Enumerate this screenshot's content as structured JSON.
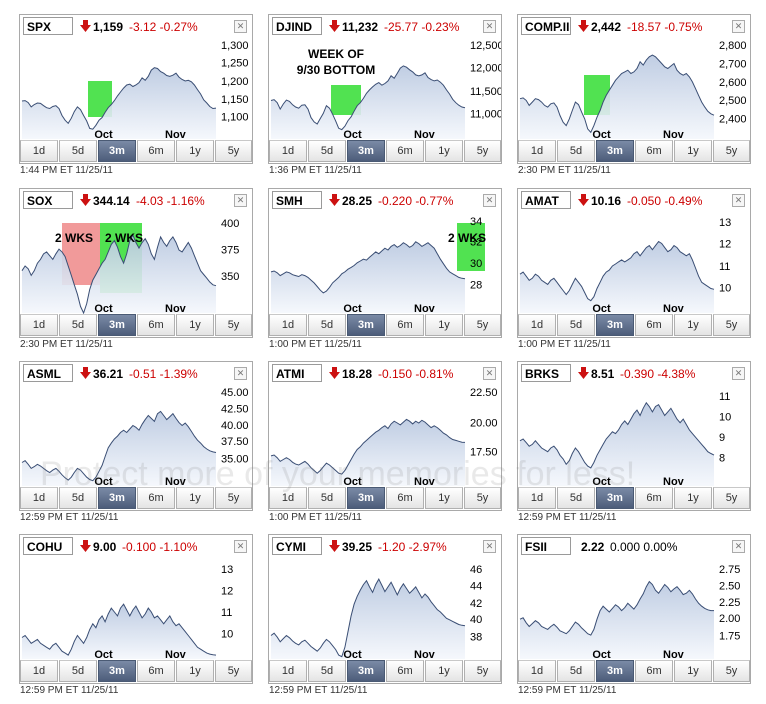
{
  "watermark": {
    "lines": [
      "Protect more of your memories for less!"
    ]
  },
  "tabs": [
    "1d",
    "5d",
    "3m",
    "6m",
    "1y",
    "5y"
  ],
  "panels": [
    {
      "symbol": "SPX",
      "price": "1,159",
      "change": "-3.12 -0.27%",
      "timestamp": "1:44 PM ET 11/25/11",
      "active_tab": "3m",
      "direction": "down",
      "ticks": [
        "1,300",
        "1,250",
        "1,200",
        "1,150",
        "1,100"
      ],
      "xlabels": [
        "Oct",
        "Nov"
      ],
      "annotations": [],
      "boxes": [
        {
          "color": "#33dd33"
        }
      ],
      "chart_data": {
        "type": "area",
        "y": [
          1177,
          1178,
          1173,
          1162,
          1168,
          1172,
          1171,
          1165,
          1160,
          1158,
          1163,
          1165,
          1158,
          1140,
          1128,
          1120,
          1133,
          1150,
          1162,
          1155,
          1140,
          1126,
          1107,
          1105,
          1115,
          1128,
          1135,
          1148,
          1160,
          1168,
          1178,
          1190,
          1200,
          1210,
          1218,
          1220,
          1214,
          1218,
          1224,
          1236,
          1230,
          1240,
          1256,
          1262,
          1260,
          1252,
          1248,
          1242,
          1240,
          1243,
          1248,
          1238,
          1232,
          1228,
          1230,
          1226,
          1218,
          1206,
          1195,
          1180,
          1172,
          1163,
          1158,
          1159
        ],
        "ylim": [
          1080,
          1320
        ]
      }
    },
    {
      "symbol": "DJIND",
      "price": "11,232",
      "change": "-25.77 -0.23%",
      "timestamp": "1:36 PM ET 11/25/11",
      "active_tab": "3m",
      "direction": "down",
      "ticks": [
        "12,500",
        "12,000",
        "11,500",
        "11,000"
      ],
      "xlabels": [
        "Oct",
        "Nov"
      ],
      "annotations": [
        "WEEK OF",
        "9/30 BOTTOM"
      ],
      "boxes": [
        {
          "color": "#33dd33"
        }
      ],
      "chart_data": {
        "type": "area",
        "y": [
          11400,
          11420,
          11350,
          11200,
          11320,
          11410,
          11380,
          11300,
          11250,
          11220,
          11290,
          11300,
          11200,
          11000,
          10900,
          10850,
          10980,
          11100,
          11280,
          11220,
          11080,
          10920,
          10750,
          10720,
          10800,
          10930,
          11020,
          11150,
          11280,
          11350,
          11450,
          11570,
          11650,
          11720,
          11780,
          11820,
          11760,
          11800,
          11860,
          11980,
          11920,
          12040,
          12160,
          12210,
          12180,
          12120,
          12070,
          12000,
          11980,
          12000,
          12050,
          11940,
          11890,
          11860,
          11880,
          11830,
          11760,
          11650,
          11550,
          11430,
          11350,
          11290,
          11250,
          11232
        ],
        "ylim": [
          10500,
          12700
        ]
      }
    },
    {
      "symbol": "COMP.II",
      "price": "2,442",
      "change": "-18.57 -0.75%",
      "timestamp": "2:30 PM ET 11/25/11",
      "active_tab": "3m",
      "direction": "down",
      "ticks": [
        "2,800",
        "2,700",
        "2,600",
        "2,500",
        "2,400"
      ],
      "xlabels": [
        "Oct",
        "Nov"
      ],
      "annotations": [],
      "boxes": [
        {
          "color": "#33dd33"
        }
      ],
      "chart_data": {
        "type": "area",
        "y": [
          2540,
          2545,
          2530,
          2500,
          2520,
          2540,
          2535,
          2520,
          2500,
          2490,
          2510,
          2515,
          2490,
          2440,
          2400,
          2380,
          2420,
          2470,
          2520,
          2505,
          2460,
          2420,
          2360,
          2340,
          2380,
          2430,
          2470,
          2520,
          2560,
          2590,
          2620,
          2650,
          2670,
          2690,
          2700,
          2710,
          2690,
          2700,
          2720,
          2760,
          2740,
          2770,
          2790,
          2800,
          2790,
          2770,
          2750,
          2730,
          2720,
          2735,
          2750,
          2710,
          2690,
          2680,
          2690,
          2670,
          2640,
          2600,
          2560,
          2520,
          2490,
          2465,
          2450,
          2442
        ],
        "ylim": [
          2300,
          2860
        ]
      }
    },
    {
      "symbol": "SOX",
      "price": "344.14",
      "change": "-4.03 -1.16%",
      "timestamp": "2:30 PM ET 11/25/11",
      "active_tab": "3m",
      "direction": "down",
      "ticks": [
        "400",
        "375",
        "350"
      ],
      "xlabels": [
        "Oct",
        "Nov"
      ],
      "annotations": [
        "2 WKS",
        "2 WKS"
      ],
      "boxes": [
        {
          "color": "#ee8888"
        },
        {
          "color": "#33dd33"
        }
      ],
      "chart_data": {
        "type": "area",
        "y": [
          360,
          365,
          362,
          355,
          360,
          368,
          372,
          378,
          380,
          376,
          372,
          378,
          383,
          380,
          375,
          365,
          355,
          345,
          335,
          322,
          315,
          325,
          340,
          350,
          356,
          362,
          368,
          372,
          380,
          388,
          392,
          385,
          375,
          368,
          378,
          392,
          398,
          390,
          384,
          390,
          394,
          388,
          378,
          372,
          385,
          396,
          390,
          386,
          392,
          396,
          390,
          382,
          380,
          385,
          390,
          384,
          376,
          368,
          360,
          356,
          352,
          348,
          345,
          344
        ],
        "ylim": [
          315,
          415
        ]
      }
    },
    {
      "symbol": "SMH",
      "price": "28.25",
      "change": "-0.220 -0.77%",
      "timestamp": "1:00 PM ET 11/25/11",
      "active_tab": "3m",
      "direction": "down",
      "ticks": [
        "34",
        "32",
        "30",
        "28"
      ],
      "xlabels": [
        "Oct",
        "Nov"
      ],
      "annotations": [
        "2 WKS"
      ],
      "boxes": [
        {
          "color": "#33dd33"
        }
      ],
      "chart_data": {
        "type": "area",
        "y": [
          29.0,
          29.1,
          28.9,
          28.6,
          28.8,
          29.0,
          28.9,
          28.7,
          28.6,
          28.5,
          28.7,
          28.6,
          28.4,
          28.1,
          27.8,
          27.4,
          27.0,
          26.7,
          26.9,
          27.3,
          27.8,
          28.1,
          28.4,
          28.8,
          29.0,
          29.3,
          29.5,
          29.7,
          30.0,
          30.2,
          30.4,
          30.3,
          30.6,
          30.9,
          31.2,
          31.0,
          31.3,
          31.6,
          31.4,
          31.8,
          32.0,
          31.7,
          31.9,
          32.2,
          32.0,
          31.7,
          31.9,
          32.3,
          32.1,
          31.8,
          32.0,
          32.2,
          31.9,
          31.6,
          31.0,
          30.4,
          29.9,
          29.4,
          29.0,
          28.8,
          28.6,
          28.4,
          28.3,
          28.25
        ],
        "ylim": [
          24.5,
          34.8
        ]
      }
    },
    {
      "symbol": "AMAT",
      "price": "10.16",
      "change": "-0.050 -0.49%",
      "timestamp": "1:00 PM ET 11/25/11",
      "active_tab": "3m",
      "direction": "down",
      "ticks": [
        "13",
        "12",
        "11",
        "10"
      ],
      "xlabels": [
        "Oct",
        "Nov"
      ],
      "annotations": [],
      "boxes": [],
      "chart_data": {
        "type": "area",
        "y": [
          10.9,
          11.0,
          10.8,
          10.6,
          10.7,
          10.9,
          10.8,
          10.6,
          10.5,
          10.4,
          10.6,
          10.7,
          10.5,
          10.3,
          10.1,
          9.9,
          10.1,
          10.4,
          10.7,
          10.5,
          10.3,
          10.0,
          9.7,
          9.6,
          9.8,
          10.2,
          10.5,
          10.8,
          11.0,
          11.1,
          11.3,
          11.4,
          11.5,
          11.6,
          11.5,
          11.6,
          11.7,
          11.9,
          12.0,
          11.8,
          12.0,
          12.2,
          12.3,
          12.1,
          12.3,
          12.5,
          12.4,
          12.2,
          12.0,
          12.1,
          12.3,
          12.2,
          12.0,
          11.9,
          11.8,
          11.9,
          11.6,
          11.2,
          10.8,
          10.5,
          10.4,
          10.3,
          10.2,
          10.16
        ],
        "ylim": [
          9.0,
          13.6
        ]
      }
    },
    {
      "symbol": "ASML",
      "price": "36.21",
      "change": "-0.51 -1.39%",
      "timestamp": "12:59 PM ET 11/25/11",
      "active_tab": "3m",
      "direction": "down",
      "ticks": [
        "45.00",
        "42.50",
        "40.00",
        "37.50",
        "35.00"
      ],
      "xlabels": [
        "Oct",
        "Nov"
      ],
      "annotations": [],
      "boxes": [],
      "chart_data": {
        "type": "area",
        "y": [
          34.5,
          34.8,
          34.2,
          33.5,
          33.8,
          34.2,
          33.9,
          33.5,
          33.1,
          32.8,
          33.2,
          33.5,
          33.0,
          32.4,
          31.9,
          31.5,
          32.0,
          32.8,
          33.5,
          33.2,
          32.6,
          32.0,
          31.6,
          31.4,
          32.0,
          33.0,
          34.0,
          35.5,
          37.0,
          37.8,
          38.5,
          39.0,
          39.6,
          40.0,
          39.6,
          40.2,
          40.8,
          40.5,
          40.0,
          41.0,
          41.8,
          42.5,
          42.0,
          41.5,
          42.8,
          43.2,
          42.5,
          41.8,
          42.3,
          42.8,
          42.0,
          41.3,
          40.8,
          41.2,
          40.6,
          39.8,
          39.0,
          38.3,
          37.8,
          37.2,
          36.8,
          36.5,
          36.3,
          36.21
        ],
        "ylim": [
          30.5,
          46.5
        ]
      }
    },
    {
      "symbol": "ATMI",
      "price": "18.28",
      "change": "-0.150 -0.81%",
      "timestamp": "1:00 PM ET 11/25/11",
      "active_tab": "3m",
      "direction": "down",
      "ticks": [
        "22.50",
        "20.00",
        "17.50"
      ],
      "xlabels": [
        "Oct",
        "Nov"
      ],
      "annotations": [],
      "boxes": [],
      "chart_data": {
        "type": "area",
        "y": [
          16.8,
          16.9,
          16.6,
          16.2,
          16.4,
          16.6,
          16.4,
          16.1,
          15.9,
          15.8,
          16.0,
          16.2,
          15.9,
          15.5,
          15.2,
          14.9,
          15.2,
          15.6,
          16.0,
          15.8,
          15.5,
          15.2,
          14.9,
          14.8,
          15.2,
          15.8,
          16.4,
          17.0,
          17.5,
          17.8,
          18.2,
          18.5,
          18.8,
          19.1,
          19.4,
          19.6,
          19.9,
          20.1,
          19.8,
          20.3,
          20.6,
          20.4,
          20.2,
          20.5,
          20.8,
          20.6,
          20.3,
          20.6,
          20.4,
          20.7,
          20.5,
          20.2,
          19.9,
          20.1,
          19.9,
          19.6,
          19.3,
          19.1,
          18.8,
          18.6,
          18.5,
          18.4,
          18.3,
          18.28
        ],
        "ylim": [
          13.5,
          23.8
        ]
      }
    },
    {
      "symbol": "BRKS",
      "price": "8.51",
      "change": "-0.390 -4.38%",
      "timestamp": "12:59 PM ET 11/25/11",
      "active_tab": "3m",
      "direction": "down",
      "ticks": [
        "11",
        "10",
        "9",
        "8"
      ],
      "xlabels": [
        "Oct",
        "Nov"
      ],
      "annotations": [],
      "boxes": [],
      "chart_data": {
        "type": "area",
        "y": [
          9.3,
          9.4,
          9.2,
          9.0,
          9.1,
          9.3,
          9.1,
          8.9,
          8.8,
          8.7,
          8.9,
          9.0,
          8.8,
          8.5,
          8.3,
          8.0,
          8.2,
          8.6,
          8.9,
          8.7,
          8.4,
          8.1,
          7.9,
          7.8,
          8.1,
          8.5,
          8.8,
          9.1,
          9.4,
          9.6,
          9.8,
          9.7,
          9.9,
          10.2,
          10.4,
          10.2,
          10.5,
          10.8,
          11.0,
          10.7,
          11.1,
          11.4,
          11.2,
          10.9,
          11.2,
          11.3,
          11.0,
          10.7,
          10.9,
          11.1,
          10.8,
          10.5,
          10.3,
          10.5,
          10.2,
          9.9,
          9.7,
          9.5,
          9.3,
          9.1,
          8.9,
          8.7,
          8.6,
          8.51
        ],
        "ylim": [
          6.8,
          12.0
        ]
      }
    },
    {
      "symbol": "COHU",
      "price": "9.00",
      "change": "-0.100 -1.10%",
      "timestamp": "12:59 PM ET 11/25/11",
      "active_tab": "3m",
      "direction": "down",
      "ticks": [
        "13",
        "12",
        "11",
        "10"
      ],
      "xlabels": [
        "Oct",
        "Nov"
      ],
      "annotations": [],
      "boxes": [],
      "chart_data": {
        "type": "area",
        "y": [
          9.9,
          10.0,
          9.8,
          9.6,
          9.7,
          9.8,
          9.6,
          9.5,
          9.4,
          9.3,
          9.5,
          9.6,
          9.4,
          9.2,
          9.1,
          9.0,
          9.3,
          9.7,
          10.0,
          9.8,
          9.6,
          9.9,
          10.3,
          10.6,
          10.4,
          10.8,
          11.0,
          10.7,
          11.1,
          11.4,
          11.2,
          11.0,
          11.4,
          11.6,
          11.3,
          11.0,
          11.3,
          11.5,
          11.2,
          10.9,
          11.1,
          11.4,
          11.2,
          10.9,
          11.0,
          10.8,
          10.6,
          10.8,
          11.0,
          10.7,
          10.5,
          10.6,
          10.4,
          10.2,
          10.0,
          9.8,
          9.6,
          9.4,
          9.3,
          9.2,
          9.1,
          9.05,
          9.02,
          9.0
        ],
        "ylim": [
          8.8,
          13.6
        ]
      }
    },
    {
      "symbol": "CYMI",
      "price": "39.25",
      "change": "-1.20 -2.97%",
      "timestamp": "12:59 PM ET 11/25/11",
      "active_tab": "3m",
      "direction": "down",
      "ticks": [
        "46",
        "44",
        "42",
        "40",
        "38"
      ],
      "xlabels": [
        "Oct",
        "Nov"
      ],
      "annotations": [],
      "boxes": [],
      "chart_data": {
        "type": "area",
        "y": [
          38.0,
          38.3,
          37.8,
          37.2,
          37.6,
          38.0,
          37.7,
          37.3,
          37.0,
          36.8,
          37.2,
          37.4,
          37.0,
          36.6,
          36.3,
          36.0,
          36.4,
          37.0,
          37.5,
          37.2,
          36.7,
          36.2,
          35.5,
          35.3,
          36.5,
          38.5,
          40.5,
          42.0,
          43.0,
          43.8,
          44.5,
          45.0,
          44.2,
          43.5,
          44.5,
          45.2,
          44.4,
          43.6,
          44.2,
          44.8,
          44.0,
          43.2,
          44.0,
          44.6,
          44.0,
          43.4,
          43.8,
          44.2,
          43.5,
          42.8,
          43.3,
          42.9,
          42.3,
          41.8,
          41.3,
          41.0,
          40.6,
          40.2,
          40.0,
          39.8,
          39.6,
          39.4,
          39.3,
          39.25
        ],
        "ylim": [
          35.0,
          47.0
        ]
      }
    },
    {
      "symbol": "FSII",
      "price": "2.22",
      "change": "0.000 0.00%",
      "timestamp": "12:59 PM ET 11/25/11",
      "active_tab": "3m",
      "direction": "none",
      "ticks": [
        "2.75",
        "2.50",
        "2.25",
        "2.00",
        "1.75"
      ],
      "xlabels": [
        "Oct",
        "Nov"
      ],
      "annotations": [],
      "boxes": [],
      "chart_data": {
        "type": "area",
        "y": [
          2.1,
          2.12,
          2.05,
          2.0,
          2.04,
          2.08,
          2.05,
          2.0,
          1.98,
          1.96,
          2.0,
          2.03,
          1.99,
          1.94,
          1.92,
          1.9,
          1.94,
          2.0,
          2.06,
          2.03,
          1.98,
          1.94,
          1.9,
          1.88,
          1.96,
          2.1,
          2.22,
          2.28,
          2.24,
          2.2,
          2.25,
          2.3,
          2.27,
          2.22,
          2.26,
          2.32,
          2.28,
          2.24,
          2.3,
          2.38,
          2.45,
          2.55,
          2.62,
          2.58,
          2.5,
          2.46,
          2.52,
          2.58,
          2.54,
          2.48,
          2.52,
          2.55,
          2.5,
          2.44,
          2.46,
          2.5,
          2.45,
          2.38,
          2.32,
          2.28,
          2.25,
          2.23,
          2.22,
          2.22
        ],
        "ylim": [
          1.55,
          2.85
        ]
      }
    }
  ]
}
